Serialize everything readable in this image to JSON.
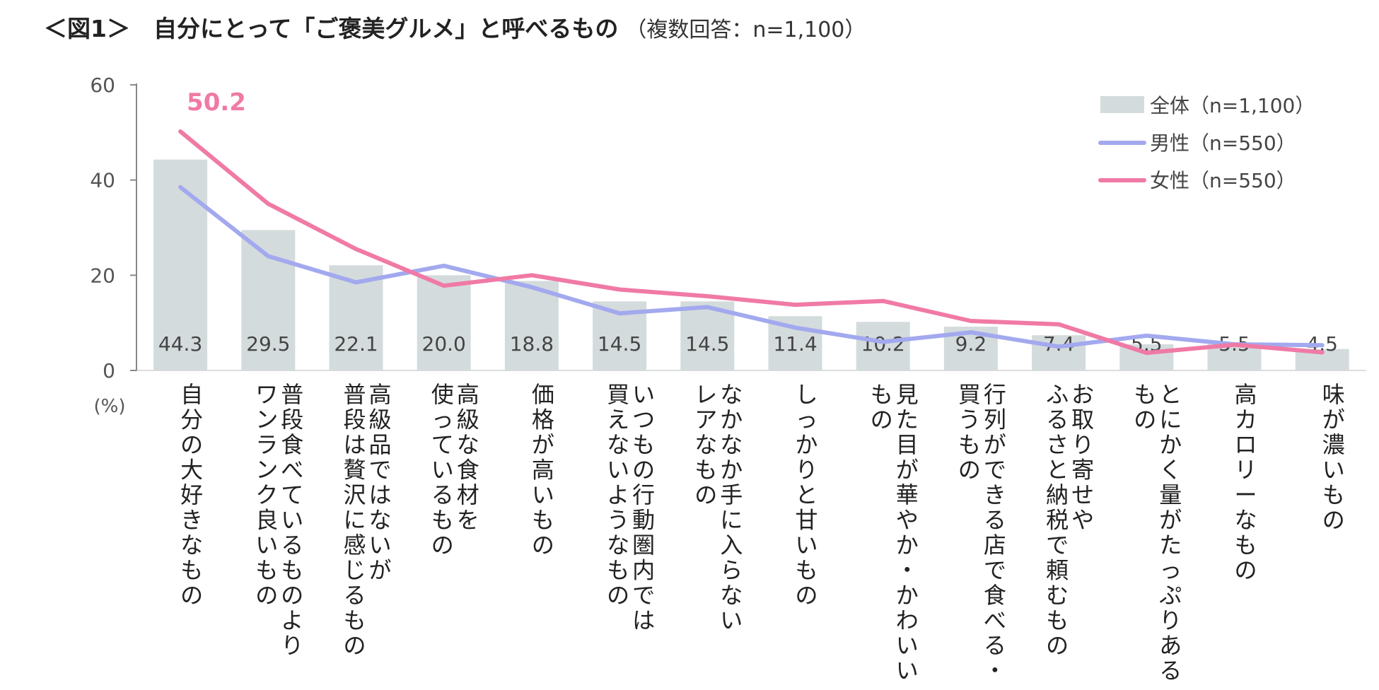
{
  "title": {
    "main": "＜図1＞　自分にとって「ご褒美グルメ」と呼べるもの",
    "sub": "（複数回答：n=1,100）"
  },
  "chart_data": {
    "type": "bar",
    "title": "自分にとって「ご褒美グルメ」と呼べるもの",
    "ylabel": "(%)",
    "ylim": [
      0,
      60
    ],
    "yticks": [
      0,
      20,
      40,
      60
    ],
    "categories": [
      [
        "自分の大好きなもの"
      ],
      [
        "普段食べているものより",
        "ワンランク良いもの"
      ],
      [
        "高級品ではないが",
        "普段は贅沢に感じるもの"
      ],
      [
        "高級な食材を",
        "使っているもの"
      ],
      [
        "価格が高いもの"
      ],
      [
        "いつもの行動圏内では",
        "買えないようなもの"
      ],
      [
        "なかなか手に入らない",
        "レアなもの"
      ],
      [
        "しっかりと甘いもの"
      ],
      [
        "見た目が華やか・かわいい",
        "もの"
      ],
      [
        "行列ができる店で食べる・",
        "買うもの"
      ],
      [
        "お取り寄せや",
        "ふるさと納税で頼むもの"
      ],
      [
        "とにかく量がたっぷりある",
        "もの"
      ],
      [
        "高カロリーなもの"
      ],
      [
        "味が濃いもの"
      ]
    ],
    "series": [
      {
        "name": "全体（n=1,100）",
        "type": "bar",
        "color": "#d4dbdc",
        "values": [
          44.3,
          29.5,
          22.1,
          20.0,
          18.8,
          14.5,
          14.5,
          11.4,
          10.2,
          9.2,
          7.4,
          5.5,
          5.5,
          4.5
        ],
        "value_labels": [
          "44.3",
          "29.5",
          "22.1",
          "20.0",
          "18.8",
          "14.5",
          "14.5",
          "11.4",
          "10.2",
          "9.2",
          "7.4",
          "5.5",
          "5.5",
          "4.5"
        ]
      },
      {
        "name": "男性（n=550）",
        "type": "line",
        "color": "#a3a9ee",
        "values": [
          38.5,
          24.0,
          18.5,
          22.0,
          17.5,
          12.0,
          13.3,
          9.0,
          6.0,
          8.0,
          5.0,
          7.3,
          5.5,
          5.3
        ]
      },
      {
        "name": "女性（n=550）",
        "type": "line",
        "color": "#f07aa5",
        "values": [
          50.2,
          35.0,
          25.5,
          17.8,
          20.0,
          17.0,
          15.6,
          13.8,
          14.6,
          10.4,
          9.7,
          3.7,
          5.4,
          3.8
        ]
      }
    ],
    "annotation": "50.2",
    "legend_position": "top-right"
  }
}
